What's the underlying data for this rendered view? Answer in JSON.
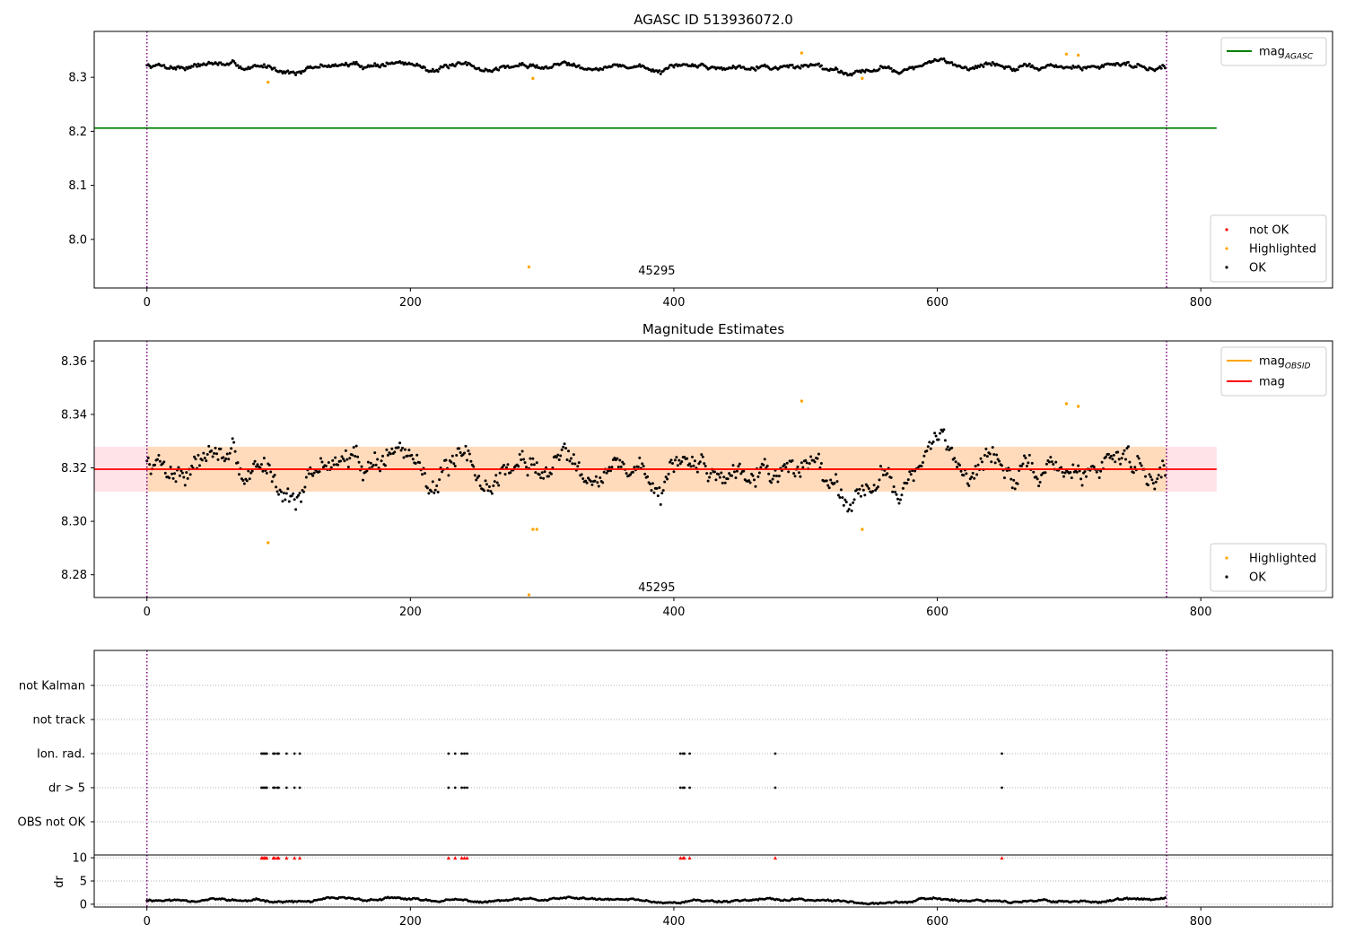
{
  "figure": {
    "colors": {
      "ok": "#000000",
      "highlighted": "#ffa500",
      "not_ok": "#ff0000",
      "mag_agasc": "#008000",
      "mag": "#ff0000",
      "mag_obsid": "#ffa500",
      "band": "#ffc0cb",
      "band_inner": "#ffd8b0",
      "obs_boundary": "#800080",
      "grid": "#b0b0b0"
    }
  },
  "chart_data": [
    {
      "id": "top",
      "type": "scatter",
      "title": "AGASC ID 513936072.0",
      "xlim": [
        -40,
        900
      ],
      "ylim": [
        7.91,
        8.385
      ],
      "xticks": [
        0,
        200,
        400,
        600,
        800
      ],
      "xtick_labels": [
        "0",
        "200",
        "400",
        "600",
        "800"
      ],
      "yticks": [
        8.0,
        8.1,
        8.2,
        8.3
      ],
      "ytick_labels": [
        "8.0",
        "8.1",
        "8.2",
        "8.3"
      ],
      "obs_boundaries": [
        0,
        774
      ],
      "obsid_label": {
        "x": 387,
        "y": 7.935,
        "text": "45295"
      },
      "hlines": [
        {
          "name": "mag_agasc",
          "y": 8.206,
          "x0": -40,
          "x1": 812,
          "color": "#008000"
        }
      ],
      "ok_series": {
        "name": "OK",
        "n": 774,
        "base": 8.32,
        "amp": 0.009,
        "noise": 0.004,
        "seed": 7
      },
      "highlighted": [
        {
          "x": 92,
          "y": 8.291
        },
        {
          "x": 290,
          "y": 7.949
        },
        {
          "x": 293,
          "y": 8.298
        },
        {
          "x": 497,
          "y": 8.345
        },
        {
          "x": 543,
          "y": 8.298
        },
        {
          "x": 698,
          "y": 8.343
        },
        {
          "x": 707,
          "y": 8.341
        }
      ],
      "legend_lines": [
        {
          "label": "mag",
          "sub": "AGASC",
          "color": "#008000"
        }
      ],
      "legend_points": [
        {
          "label": "not OK",
          "color": "#ff0000"
        },
        {
          "label": "Highlighted",
          "color": "#ffa500"
        },
        {
          "label": "OK",
          "color": "#000000"
        }
      ]
    },
    {
      "id": "middle",
      "type": "scatter",
      "title": "Magnitude Estimates",
      "xlim": [
        -40,
        900
      ],
      "ylim": [
        8.2715,
        8.3675
      ],
      "xticks": [
        0,
        200,
        400,
        600,
        800
      ],
      "xtick_labels": [
        "0",
        "200",
        "400",
        "600",
        "800"
      ],
      "yticks": [
        8.28,
        8.3,
        8.32,
        8.34,
        8.36
      ],
      "ytick_labels": [
        "8.28",
        "8.30",
        "8.32",
        "8.34",
        "8.36"
      ],
      "obs_boundaries": [
        0,
        774
      ],
      "obsid_label": {
        "x": 387,
        "y": 8.2738,
        "text": "45295"
      },
      "band": {
        "y0": 8.3111,
        "y1": 8.3279,
        "x0": -40,
        "x1": 812
      },
      "band_inner": {
        "y0": 8.3111,
        "y1": 8.3279,
        "x0": 0,
        "x1": 774
      },
      "hlines": [
        {
          "name": "mag",
          "y": 8.3195,
          "x0": -40,
          "x1": 812,
          "color": "#ff0000"
        }
      ],
      "obsid_line": {
        "y": 8.3195,
        "x0": 0,
        "x1": 774,
        "color": "#ffa500"
      },
      "ok_series": {
        "name": "OK",
        "n": 774,
        "base": 8.32,
        "amp": 0.009,
        "noise": 0.004,
        "seed": 7
      },
      "highlighted": [
        {
          "x": 92,
          "y": 8.292
        },
        {
          "x": 290,
          "y": 8.2725
        },
        {
          "x": 293,
          "y": 8.297
        },
        {
          "x": 296,
          "y": 8.297
        },
        {
          "x": 497,
          "y": 8.345
        },
        {
          "x": 543,
          "y": 8.297
        },
        {
          "x": 698,
          "y": 8.344
        },
        {
          "x": 707,
          "y": 8.343
        }
      ],
      "legend_lines": [
        {
          "label": "mag",
          "sub": "OBSID",
          "color": "#ffa500"
        },
        {
          "label": "mag",
          "sub": "",
          "color": "#ff0000"
        }
      ],
      "legend_points": [
        {
          "label": "Highlighted",
          "color": "#ffa500"
        },
        {
          "label": "OK",
          "color": "#000000"
        }
      ]
    },
    {
      "id": "flags",
      "type": "scatter",
      "xlim": [
        -40,
        900
      ],
      "categories": [
        "not Kalman",
        "not track",
        "Ion. rad.",
        "dr > 5",
        "OBS not OK"
      ],
      "obs_boundaries": [
        0,
        774
      ],
      "flag_points": {
        "Ion. rad.": [
          87,
          88,
          89,
          90,
          91,
          96,
          97,
          99,
          100,
          106,
          112,
          116,
          229,
          234,
          239,
          241,
          243,
          405,
          407,
          408,
          412,
          477,
          649
        ],
        "dr > 5": [
          87,
          88,
          89,
          90,
          91,
          96,
          97,
          99,
          100,
          106,
          112,
          116,
          229,
          234,
          239,
          241,
          243,
          405,
          407,
          408,
          412,
          477,
          649
        ]
      }
    },
    {
      "id": "dr",
      "type": "scatter",
      "ylabel": "dr",
      "xlim": [
        -40,
        900
      ],
      "ylim": [
        -0.6,
        10.6
      ],
      "xticks": [
        0,
        200,
        400,
        600,
        800
      ],
      "xtick_labels": [
        "0",
        "200",
        "400",
        "600",
        "800"
      ],
      "yticks": [
        0,
        5,
        10
      ],
      "ytick_labels": [
        "0",
        "5",
        "10"
      ],
      "obs_boundaries": [
        0,
        774
      ],
      "dr_series": {
        "n": 774,
        "base": 0.8,
        "amp": 0.4,
        "noise": 0.2,
        "seed": 11
      },
      "clipped": {
        "y": 10,
        "x": [
          87,
          88,
          89,
          90,
          91,
          96,
          97,
          99,
          100,
          106,
          112,
          116,
          229,
          234,
          239,
          241,
          243,
          405,
          407,
          408,
          412,
          477,
          649
        ]
      }
    }
  ]
}
